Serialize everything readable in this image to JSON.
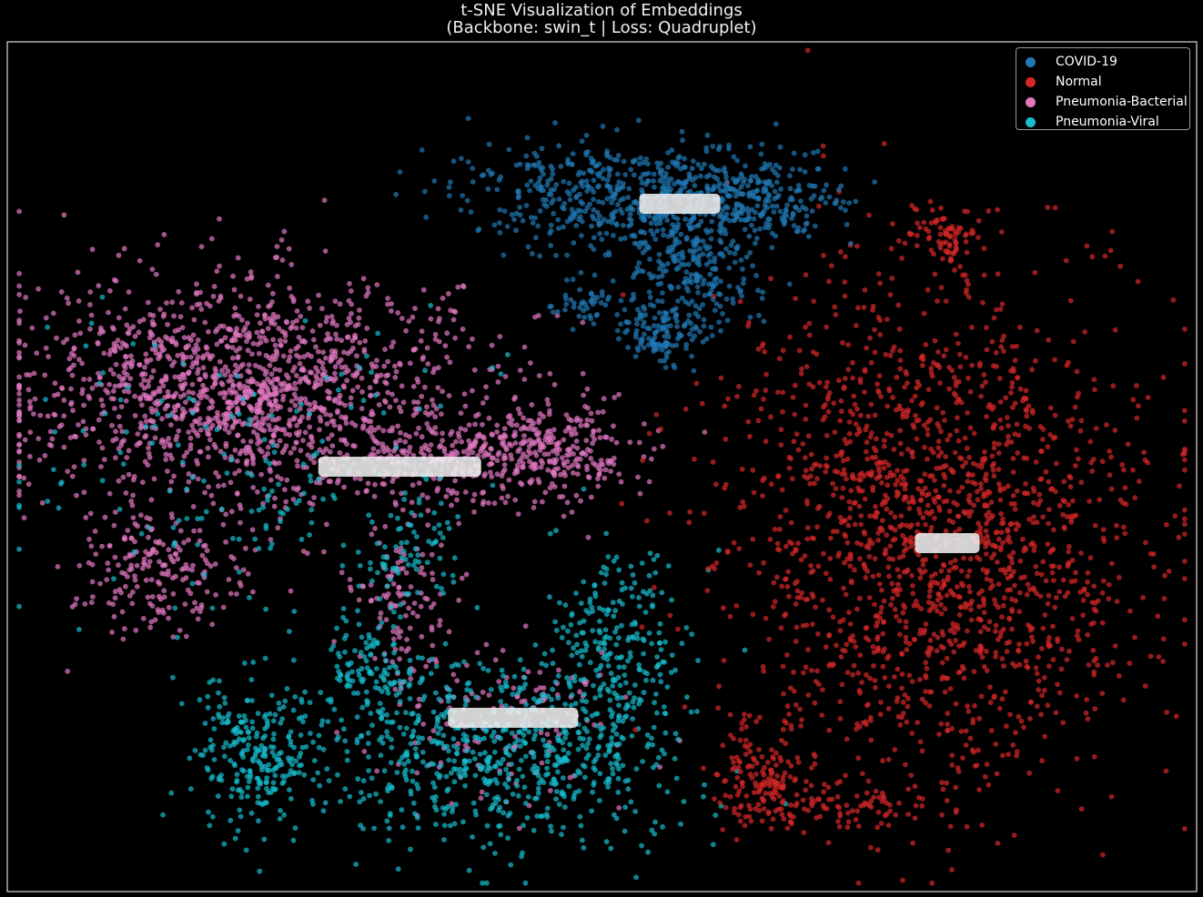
{
  "chart_data": {
    "type": "scatter",
    "title": "t-SNE Visualization of Embeddings",
    "subtitle": "(Backbone: swin_t | Loss: Quadruplet)",
    "xlabel": "",
    "ylabel": "",
    "xlim": [
      0,
      100
    ],
    "ylim": [
      0,
      100
    ],
    "grid": false,
    "legend_position": "top-right",
    "background": "#000000",
    "series": [
      {
        "name": "COVID-19",
        "color": "#1f77b4",
        "centroid": [
          56.5,
          81.0
        ],
        "clusters": [
          {
            "cx": 52,
            "cy": 82,
            "sx": 6.5,
            "sy": 3.2,
            "n": 520
          },
          {
            "cx": 57,
            "cy": 73,
            "sx": 3.0,
            "sy": 3.5,
            "n": 240
          },
          {
            "cx": 63,
            "cy": 81.5,
            "sx": 3.8,
            "sy": 2.5,
            "n": 240
          },
          {
            "cx": 55,
            "cy": 65.5,
            "sx": 1.8,
            "sy": 1.6,
            "n": 110
          },
          {
            "cx": 49,
            "cy": 69,
            "sx": 1.6,
            "sy": 1.4,
            "n": 50
          }
        ]
      },
      {
        "name": "Normal",
        "color": "#d62728",
        "centroid": [
          79.0,
          41.0
        ],
        "clusters": [
          {
            "cx": 78,
            "cy": 42,
            "sx": 9.0,
            "sy": 15.0,
            "n": 1750
          },
          {
            "cx": 79,
            "cy": 77,
            "sx": 1.5,
            "sy": 2.0,
            "n": 80
          },
          {
            "cx": 63,
            "cy": 13,
            "sx": 2.0,
            "sy": 3.0,
            "n": 140
          },
          {
            "cx": 70,
            "cy": 10,
            "sx": 3.5,
            "sy": 1.5,
            "n": 80
          }
        ]
      },
      {
        "name": "Pneumonia-Bacterial",
        "color": "#e377c2",
        "centroid": [
          33.0,
          50.0
        ],
        "clusters": [
          {
            "cx": 20,
            "cy": 59,
            "sx": 9.5,
            "sy": 6.5,
            "n": 1500
          },
          {
            "cx": 45,
            "cy": 52,
            "sx": 4.0,
            "sy": 3.0,
            "n": 320
          },
          {
            "cx": 36,
            "cy": 51,
            "sx": 3.5,
            "sy": 2.5,
            "n": 150
          },
          {
            "cx": 13,
            "cy": 38,
            "sx": 3.5,
            "sy": 4.0,
            "n": 200
          },
          {
            "cx": 33,
            "cy": 35,
            "sx": 2.0,
            "sy": 4.5,
            "n": 110
          },
          {
            "cx": 42,
            "cy": 20,
            "sx": 6.0,
            "sy": 5.0,
            "n": 140
          }
        ]
      },
      {
        "name": "Pneumonia-Viral",
        "color": "#17becf",
        "centroid": [
          42.5,
          20.5
        ],
        "clusters": [
          {
            "cx": 42,
            "cy": 16,
            "sx": 7.5,
            "sy": 5.5,
            "n": 650
          },
          {
            "cx": 21,
            "cy": 17,
            "sx": 2.8,
            "sy": 4.5,
            "n": 260
          },
          {
            "cx": 51,
            "cy": 28,
            "sx": 3.0,
            "sy": 6.0,
            "n": 240
          },
          {
            "cx": 31,
            "cy": 26,
            "sx": 2.2,
            "sy": 3.5,
            "n": 130
          },
          {
            "cx": 20,
            "cy": 50,
            "sx": 10.0,
            "sy": 8.0,
            "n": 170
          },
          {
            "cx": 34,
            "cy": 40,
            "sx": 2.0,
            "sy": 3.0,
            "n": 70
          }
        ]
      }
    ]
  }
}
